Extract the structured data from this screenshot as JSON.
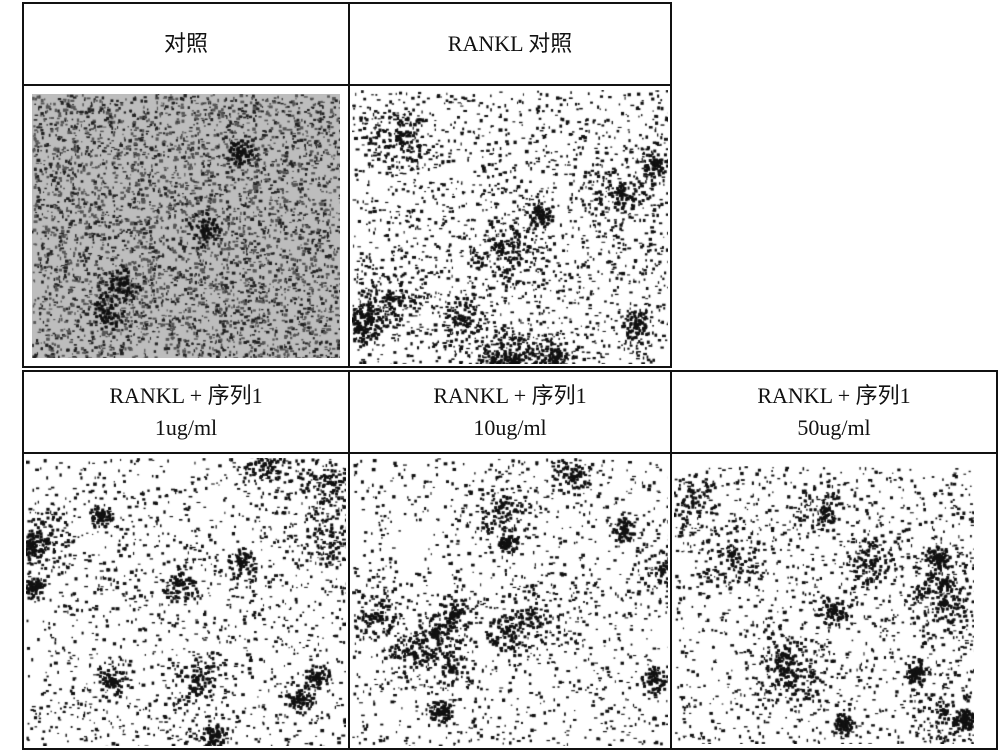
{
  "figure": {
    "top_row": [
      {
        "label": "对照",
        "image": "micrograph-control",
        "density": 0.55,
        "tint": "gray"
      },
      {
        "label": "RANKL 对照",
        "image": "micrograph-rankl-control",
        "density": 0.35,
        "tint": "black"
      }
    ],
    "bottom_row": [
      {
        "label": "RANKL + 序列1",
        "concentration": "1ug/ml",
        "image": "micrograph-rankl-seq1-1ug",
        "density": 0.3
      },
      {
        "label": "RANKL + 序列1",
        "concentration": "10ug/ml",
        "image": "micrograph-rankl-seq1-10ug",
        "density": 0.27
      },
      {
        "label": "RANKL + 序列1",
        "concentration": "50ug/ml",
        "image": "micrograph-rankl-seq1-50ug",
        "density": 0.3
      }
    ]
  }
}
